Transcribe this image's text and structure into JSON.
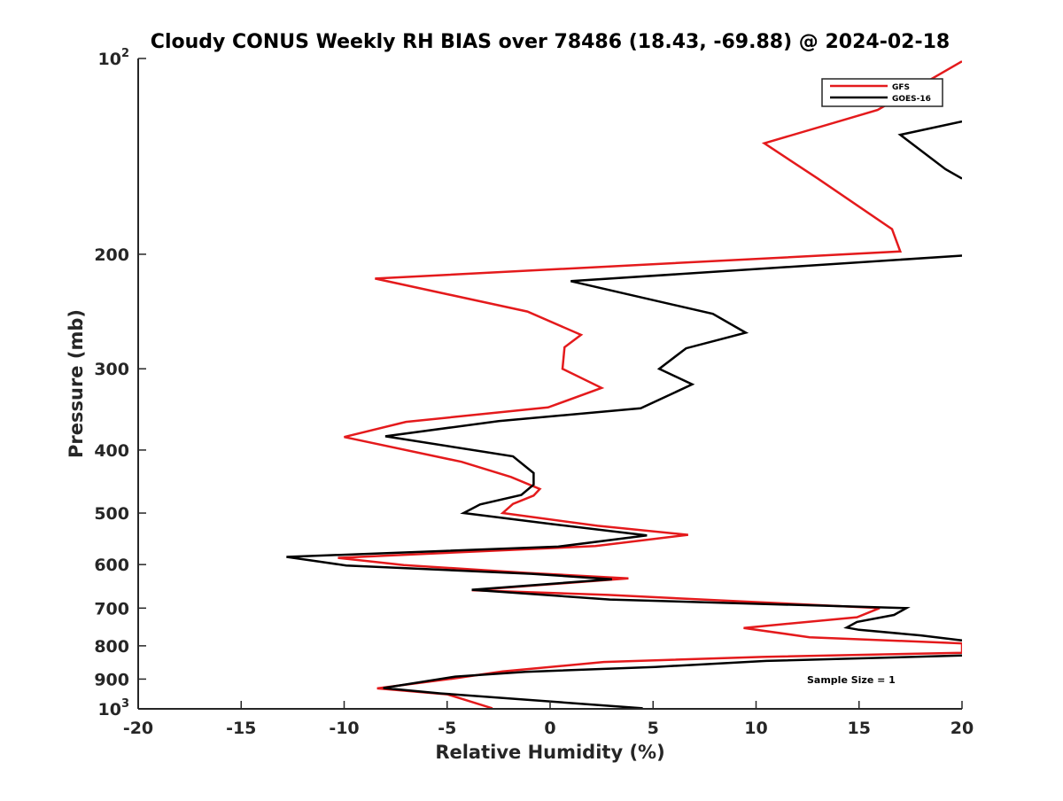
{
  "chart_data": {
    "type": "line",
    "title": "Cloudy CONUS Weekly RH BIAS over 78486 (18.43, -69.88) @ 2024-02-18",
    "xlabel": "Relative Humidity (%)",
    "ylabel": "Pressure (mb)",
    "xlim": [
      -20,
      20
    ],
    "ylim": [
      100,
      1000
    ],
    "y_scale": "log",
    "y_reversed": true,
    "grid": false,
    "legend_position": "top-right",
    "annotation": "Sample Size = 1",
    "xticks": [
      -20,
      -15,
      -10,
      -5,
      0,
      5,
      10,
      15,
      20
    ],
    "xtick_labels": [
      "-20",
      "-15",
      "-10",
      "-5",
      "0",
      "5",
      "10",
      "15",
      "20"
    ],
    "yticks": [
      {
        "value": 100,
        "base": "10",
        "exp": "2"
      },
      {
        "value": 200,
        "base": "200",
        "exp": ""
      },
      {
        "value": 300,
        "base": "300",
        "exp": ""
      },
      {
        "value": 400,
        "base": "400",
        "exp": ""
      },
      {
        "value": 500,
        "base": "500",
        "exp": ""
      },
      {
        "value": 600,
        "base": "600",
        "exp": ""
      },
      {
        "value": 700,
        "base": "700",
        "exp": ""
      },
      {
        "value": 800,
        "base": "800",
        "exp": ""
      },
      {
        "value": 900,
        "base": "900",
        "exp": ""
      },
      {
        "value": 1000,
        "base": "10",
        "exp": "3"
      }
    ],
    "series": [
      {
        "name": "GFS",
        "color": "#e41a1c",
        "points": [
          [
            20,
            101
          ],
          [
            15.9,
            120
          ],
          [
            10.4,
            135
          ],
          [
            13,
            153
          ],
          [
            16.6,
            183
          ],
          [
            17,
            198
          ],
          [
            -8.5,
            218
          ],
          [
            -1.1,
            245
          ],
          [
            1.5,
            266
          ],
          [
            0.7,
            278
          ],
          [
            0.6,
            300
          ],
          [
            2.5,
            321
          ],
          [
            -0.1,
            344
          ],
          [
            -7,
            362
          ],
          [
            -10,
            382
          ],
          [
            -4.3,
            417
          ],
          [
            -1.9,
            440
          ],
          [
            -0.5,
            459
          ],
          [
            -0.8,
            470
          ],
          [
            -1.8,
            484
          ],
          [
            -2.3,
            500
          ],
          [
            2.3,
            523
          ],
          [
            6.7,
            540
          ],
          [
            2.2,
            562
          ],
          [
            -10.3,
            586
          ],
          [
            -7.1,
            601
          ],
          [
            -1.1,
            618
          ],
          [
            3.8,
            630
          ],
          [
            -3.8,
            657
          ],
          [
            2.8,
            668
          ],
          [
            16,
            700
          ],
          [
            14.9,
            723
          ],
          [
            9.4,
            751
          ],
          [
            12.6,
            776
          ],
          [
            20,
            793
          ],
          [
            20,
            820
          ],
          [
            10.3,
            832
          ],
          [
            2.6,
            847
          ],
          [
            -2.3,
            876
          ],
          [
            -4.8,
            899
          ],
          [
            -8.4,
            930
          ],
          [
            -5,
            950
          ],
          [
            -2.8,
            998
          ]
        ]
      },
      {
        "name": "GOES-16",
        "color": "#000000",
        "points": [
          [
            20,
            125
          ],
          [
            17,
            131
          ],
          [
            19.2,
            148
          ],
          [
            20,
            153
          ],
          null,
          [
            20,
            201
          ],
          [
            1,
            220
          ],
          [
            7.9,
            247
          ],
          [
            9.5,
            264
          ],
          [
            6.6,
            279
          ],
          [
            5.3,
            300
          ],
          [
            6.9,
            317
          ],
          [
            4.4,
            345
          ],
          [
            -2.5,
            361
          ],
          [
            -8,
            381
          ],
          [
            -1.8,
            409
          ],
          [
            -0.8,
            434
          ],
          [
            -0.8,
            452
          ],
          [
            -1.4,
            469
          ],
          [
            -3.4,
            485
          ],
          [
            -4.2,
            500
          ],
          [
            0.1,
            520
          ],
          [
            4.7,
            541
          ],
          [
            0.4,
            563
          ],
          [
            -12.8,
            584
          ],
          [
            -9.9,
            602
          ],
          [
            -0.9,
            620
          ],
          [
            3,
            632
          ],
          [
            -3.8,
            656
          ],
          [
            2.9,
            679
          ],
          [
            17.3,
            700
          ],
          [
            16.7,
            717
          ],
          [
            14.9,
            735
          ],
          [
            14.4,
            750
          ],
          [
            15,
            756
          ],
          [
            18,
            771
          ],
          [
            20,
            785
          ],
          null,
          [
            20,
            828
          ],
          [
            10.5,
            844
          ],
          [
            5.1,
            862
          ],
          [
            -1.2,
            877
          ],
          [
            -4.6,
            892
          ],
          [
            -8.1,
            929
          ],
          [
            -5.3,
            947
          ],
          [
            4.5,
            998
          ]
        ]
      }
    ]
  }
}
